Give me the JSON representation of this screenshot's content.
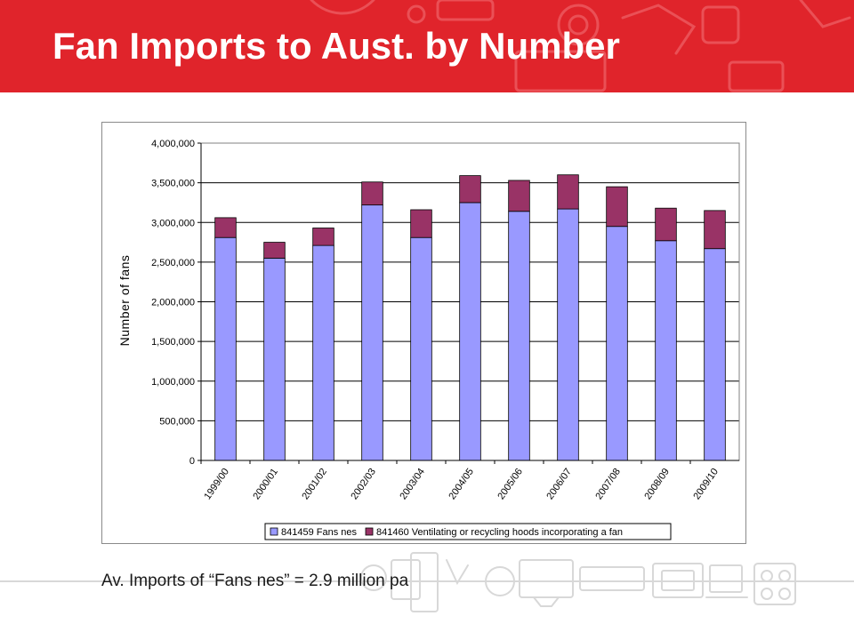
{
  "slide": {
    "title": "Fan Imports to Aust. by Number",
    "footnote": "Av. Imports of “Fans nes” = 2.9 million pa",
    "banner_color": "#e0242b"
  },
  "chart_data": {
    "type": "bar",
    "stacked": true,
    "title": "",
    "xlabel": "",
    "ylabel": "Number of fans",
    "categories": [
      "1999/00",
      "2000/01",
      "2001/02",
      "2002/03",
      "2003/04",
      "2004/05",
      "2005/06",
      "2006/07",
      "2007/08",
      "2008/09",
      "2009/10"
    ],
    "series": [
      {
        "name": "841459 Fans nes",
        "color": "#9999ff",
        "values": [
          2810000,
          2550000,
          2710000,
          3220000,
          2810000,
          3250000,
          3140000,
          3170000,
          2950000,
          2770000,
          2670000
        ]
      },
      {
        "name": "841460 Ventilating or recycling hoods incorporating a fan",
        "color": "#993366",
        "values": [
          250000,
          200000,
          220000,
          290000,
          350000,
          340000,
          390000,
          430000,
          500000,
          410000,
          480000
        ]
      }
    ],
    "ylim": [
      0,
      4000000
    ],
    "yticks": [
      "0",
      "500,000",
      "1,000,000",
      "1,500,000",
      "2,000,000",
      "2,500,000",
      "3,000,000",
      "3,500,000",
      "4,000,000"
    ],
    "ytick_values": [
      0,
      500000,
      1000000,
      1500000,
      2000000,
      2500000,
      3000000,
      3500000,
      4000000
    ],
    "grid": true,
    "legend_position": "bottom"
  }
}
